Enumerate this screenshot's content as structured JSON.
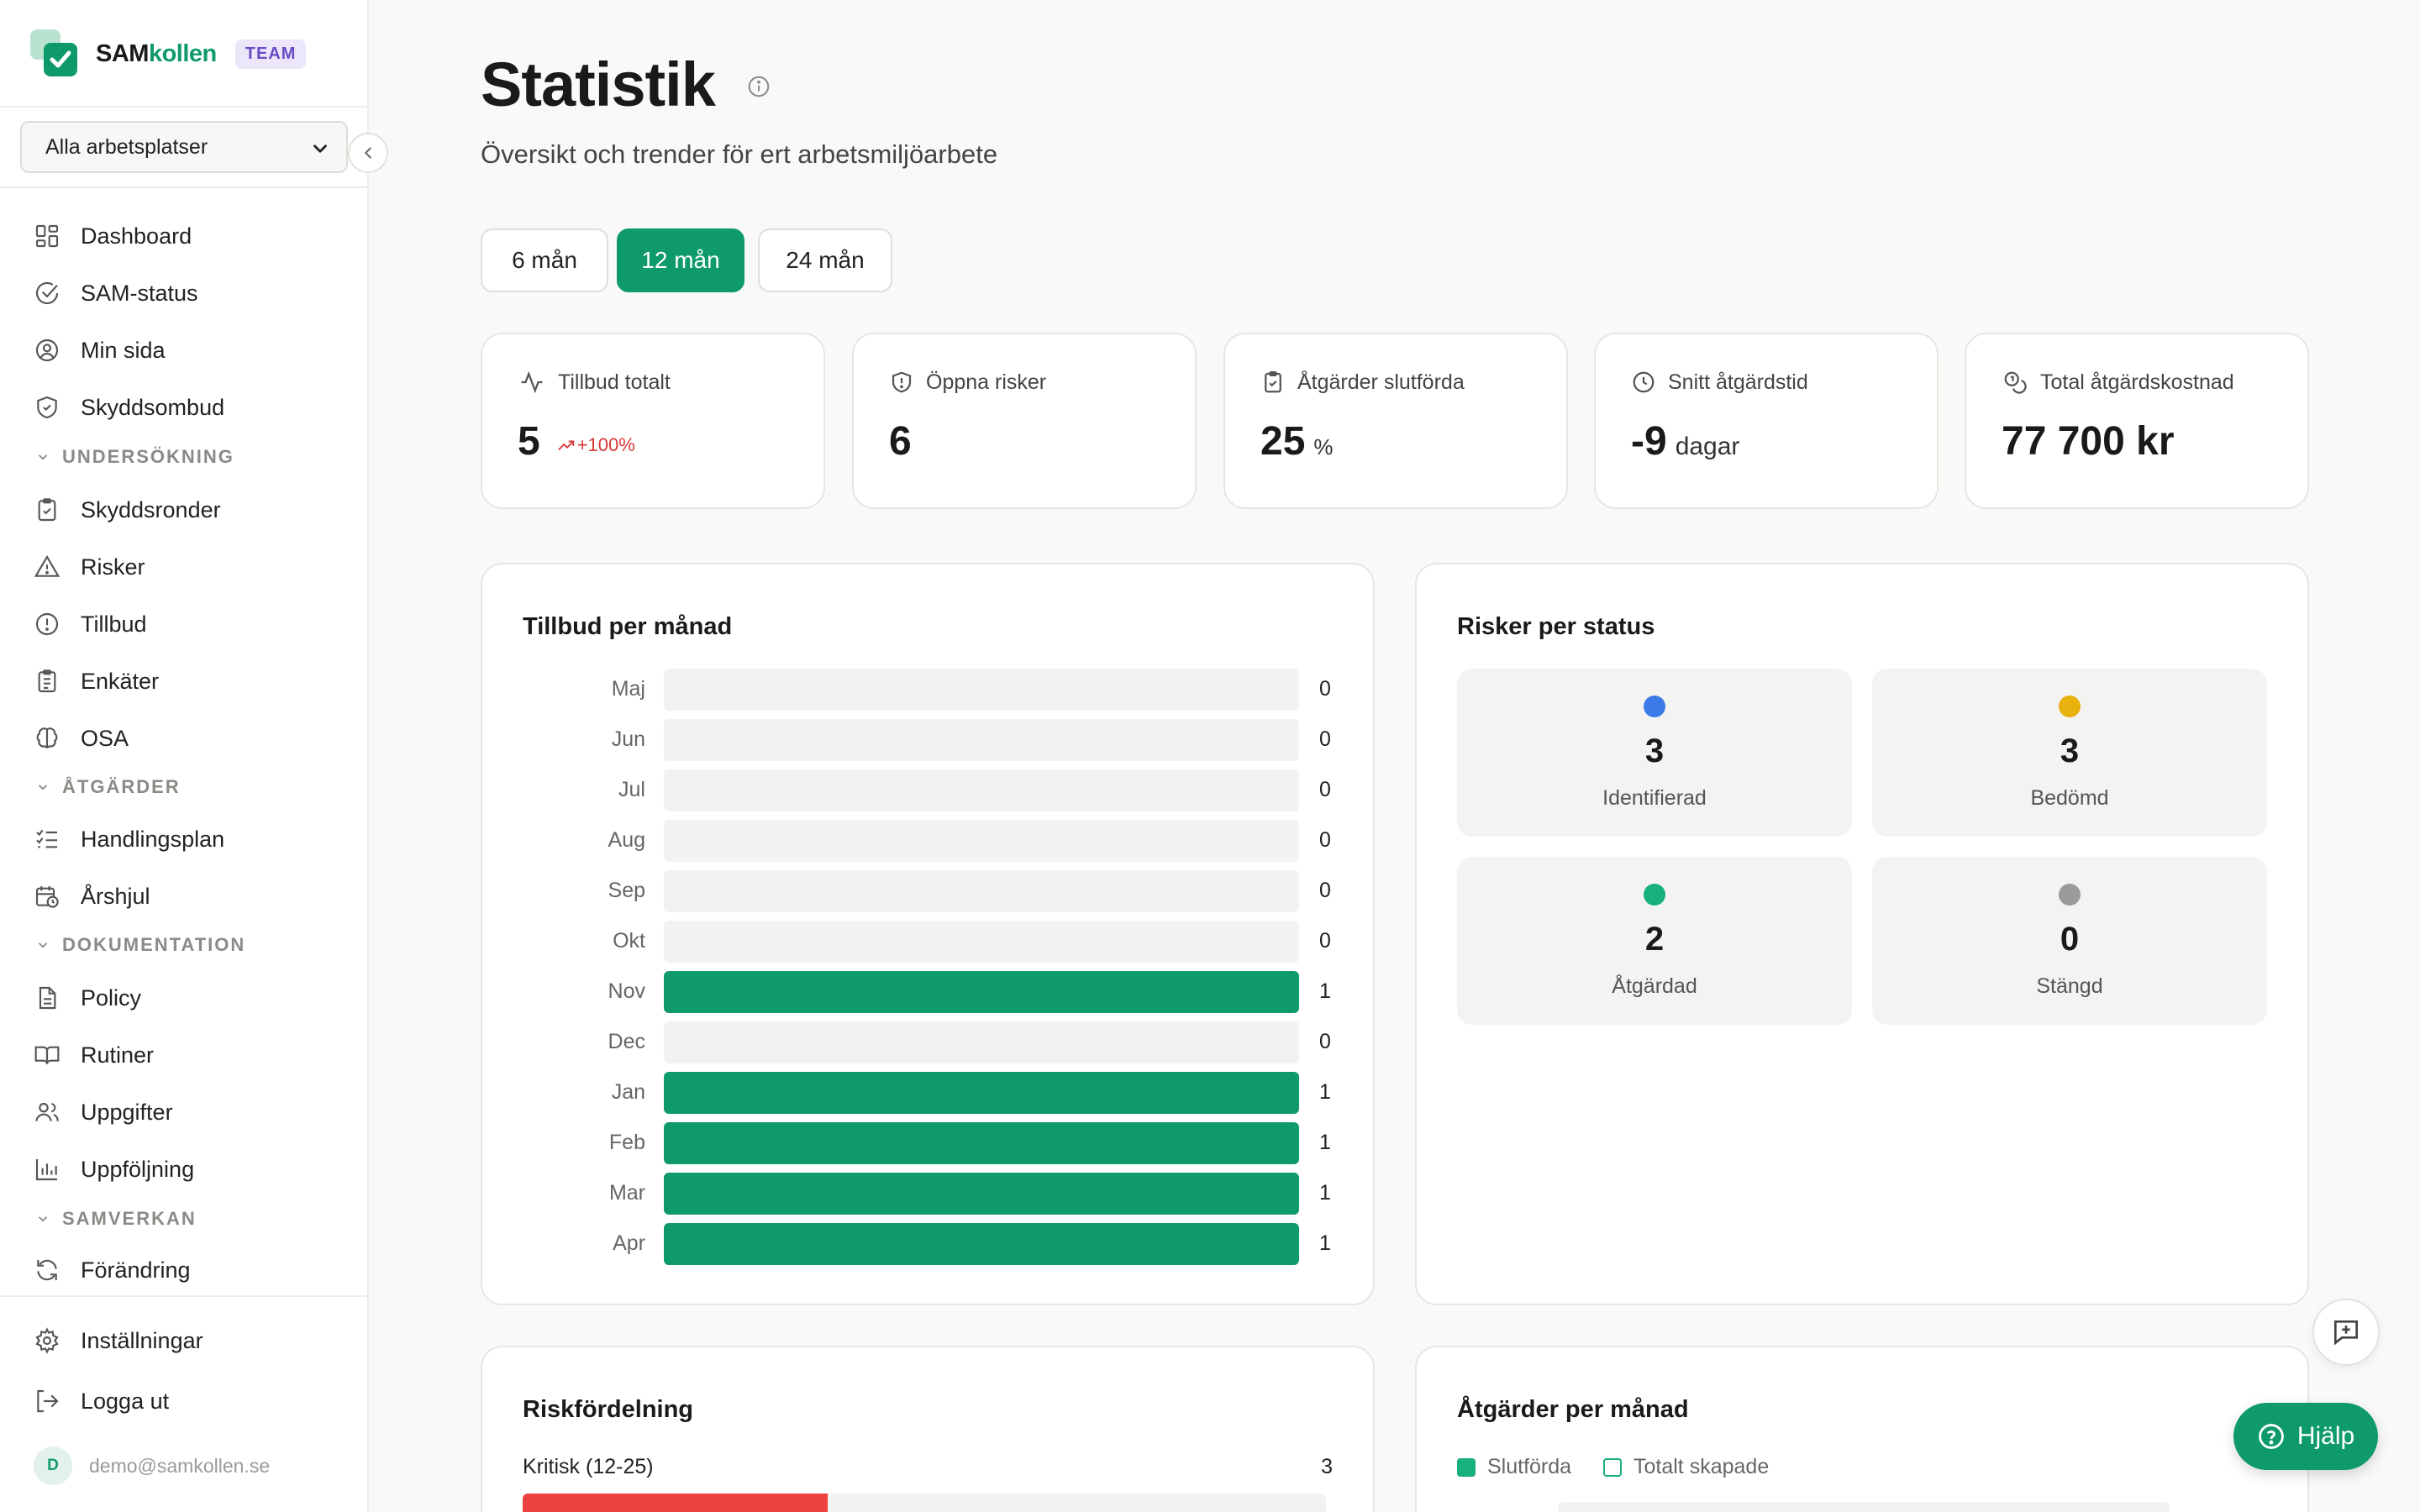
{
  "brand": {
    "name_a": "SAM",
    "name_b": "kollen",
    "badge": "TEAM"
  },
  "workplace_select": {
    "value": "Alla arbetsplatser"
  },
  "nav": {
    "dashboard": "Dashboard",
    "sam_status": "SAM-status",
    "min_sida": "Min sida",
    "skyddsombud": "Skyddsombud",
    "section_undersokning": "UNDERSÖKNING",
    "skyddsronder": "Skyddsronder",
    "risker": "Risker",
    "tillbud": "Tillbud",
    "enkater": "Enkäter",
    "osa": "OSA",
    "section_atgarder": "ÅTGÄRDER",
    "handlingsplan": "Handlingsplan",
    "arshjul": "Årshjul",
    "section_dokumentation": "DOKUMENTATION",
    "policy": "Policy",
    "rutiner": "Rutiner",
    "uppgifter": "Uppgifter",
    "uppfoljning": "Uppföljning",
    "section_samverkan": "SAMVERKAN",
    "forandring": "Förändring",
    "installningar": "Inställningar",
    "logga_ut": "Logga ut"
  },
  "user": {
    "initial": "D",
    "email": "demo@samkollen.se"
  },
  "page": {
    "title": "Statistik",
    "subtitle": "Översikt och trender för ert arbetsmiljöarbete"
  },
  "periods": [
    {
      "label": "6 mån",
      "active": false
    },
    {
      "label": "12 mån",
      "active": true
    },
    {
      "label": "24 mån",
      "active": false
    }
  ],
  "kpis": {
    "tillbud": {
      "label": "Tillbud totalt",
      "value": "5",
      "trend": "+100%"
    },
    "risker": {
      "label": "Öppna risker",
      "value": "6"
    },
    "atgarder": {
      "label": "Åtgärder slutförda",
      "value": "25",
      "unit": "%"
    },
    "snitt": {
      "label": "Snitt åtgärdstid",
      "value": "-9",
      "unit": "dagar"
    },
    "kostnad": {
      "label": "Total åtgärdskostnad",
      "value": "77 700 kr"
    }
  },
  "tillbud_card": {
    "title": "Tillbud per månad"
  },
  "chart_data": {
    "type": "bar",
    "orientation": "horizontal",
    "title": "Tillbud per månad",
    "categories": [
      "Maj",
      "Jun",
      "Jul",
      "Aug",
      "Sep",
      "Okt",
      "Nov",
      "Dec",
      "Jan",
      "Feb",
      "Mar",
      "Apr"
    ],
    "values": [
      0,
      0,
      0,
      0,
      0,
      0,
      1,
      0,
      1,
      1,
      1,
      1
    ],
    "xlim": [
      0,
      1
    ],
    "color": "#0f9a6c"
  },
  "status_card": {
    "title": "Risker per status",
    "items": [
      {
        "count": "3",
        "label": "Identifierad",
        "color": "#3b7ae8"
      },
      {
        "count": "3",
        "label": "Bedömd",
        "color": "#e8b10d"
      },
      {
        "count": "2",
        "label": "Åtgärdad",
        "color": "#18b07e"
      },
      {
        "count": "0",
        "label": "Stängd",
        "color": "#9a9a9a"
      }
    ]
  },
  "riskfordelning": {
    "title": "Riskfördelning",
    "row_label": "Kritisk (12-25)",
    "row_count": "3",
    "color": "#ee4141"
  },
  "atgarder_card": {
    "title": "Åtgärder per månad",
    "legend_done": "Slutförda",
    "legend_created": "Totalt skapade"
  },
  "help": {
    "label": "Hjälp"
  },
  "colors": {
    "accent": "#0f9a6c",
    "danger": "#d93636"
  }
}
